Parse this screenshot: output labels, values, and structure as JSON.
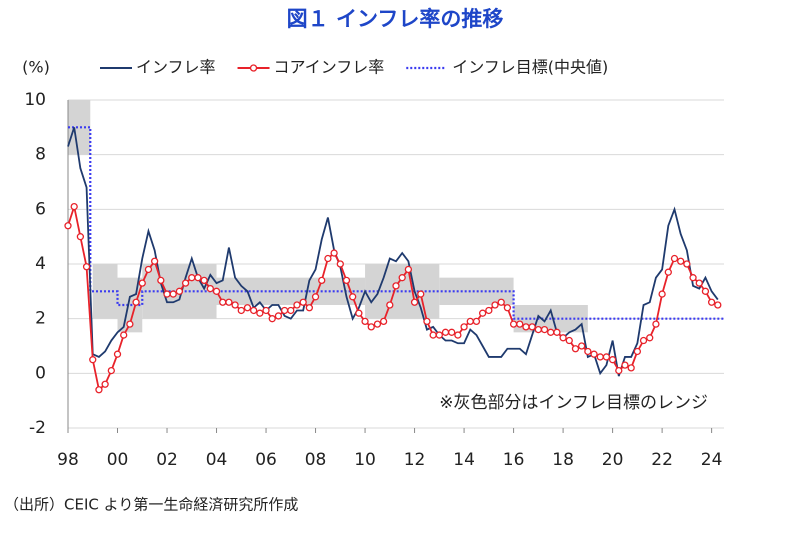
{
  "chart_data": {
    "type": "line",
    "title": "図１ インフレ率の推移",
    "y_label": "(%)",
    "annotation": "※灰色部分はインフレ目標のレンジ",
    "source": "（出所）CEIC より第一生命経済研究所作成",
    "xlim": [
      1998,
      2024.5
    ],
    "xticks": [
      {
        "value": 1998,
        "label": "98"
      },
      {
        "value": 2000,
        "label": "00"
      },
      {
        "value": 2002,
        "label": "02"
      },
      {
        "value": 2004,
        "label": "04"
      },
      {
        "value": 2006,
        "label": "06"
      },
      {
        "value": 2008,
        "label": "08"
      },
      {
        "value": 2010,
        "label": "10"
      },
      {
        "value": 2012,
        "label": "12"
      },
      {
        "value": 2014,
        "label": "14"
      },
      {
        "value": 2016,
        "label": "16"
      },
      {
        "value": 2018,
        "label": "18"
      },
      {
        "value": 2020,
        "label": "20"
      },
      {
        "value": 2022,
        "label": "22"
      },
      {
        "value": 2024,
        "label": "24"
      }
    ],
    "ylim": [
      -2,
      10
    ],
    "yticks": [
      -2,
      0,
      2,
      4,
      6,
      8,
      10
    ],
    "grid": true,
    "x": [
      1998,
      1998.25,
      1998.5,
      1998.75,
      1999,
      1999.25,
      1999.5,
      1999.75,
      2000,
      2000.25,
      2000.5,
      2000.75,
      2001,
      2001.25,
      2001.5,
      2001.75,
      2002,
      2002.25,
      2002.5,
      2002.75,
      2003,
      2003.25,
      2003.5,
      2003.75,
      2004,
      2004.25,
      2004.5,
      2004.75,
      2005,
      2005.25,
      2005.5,
      2005.75,
      2006,
      2006.25,
      2006.5,
      2006.75,
      2007,
      2007.25,
      2007.5,
      2007.75,
      2008,
      2008.25,
      2008.5,
      2008.75,
      2009,
      2009.25,
      2009.5,
      2009.75,
      2010,
      2010.25,
      2010.5,
      2010.75,
      2011,
      2011.25,
      2011.5,
      2011.75,
      2012,
      2012.25,
      2012.5,
      2012.75,
      2013,
      2013.25,
      2013.5,
      2013.75,
      2014,
      2014.25,
      2014.5,
      2014.75,
      2015,
      2015.25,
      2015.5,
      2015.75,
      2016,
      2016.25,
      2016.5,
      2016.75,
      2017,
      2017.25,
      2017.5,
      2017.75,
      2018,
      2018.25,
      2018.5,
      2018.75,
      2019,
      2019.25,
      2019.5,
      2019.75,
      2020,
      2020.25,
      2020.5,
      2020.75,
      2021,
      2021.25,
      2021.5,
      2021.75,
      2022,
      2022.25,
      2022.5,
      2022.75,
      2023,
      2023.25,
      2023.5,
      2023.75,
      2024,
      2024.25
    ],
    "series": [
      {
        "name": "インフレ率",
        "color": "#1f3a6e",
        "marker": false,
        "values": [
          8.3,
          9.0,
          7.5,
          6.8,
          0.7,
          0.6,
          0.8,
          1.2,
          1.5,
          1.7,
          2.8,
          2.9,
          4.2,
          5.2,
          4.5,
          3.3,
          2.6,
          2.6,
          2.7,
          3.5,
          4.2,
          3.5,
          3.1,
          3.6,
          3.3,
          3.4,
          4.6,
          3.5,
          3.2,
          3.0,
          2.4,
          2.6,
          2.3,
          2.5,
          2.5,
          2.1,
          2.0,
          2.3,
          2.3,
          3.4,
          3.8,
          4.9,
          5.7,
          4.5,
          3.9,
          2.8,
          2.0,
          2.4,
          3.0,
          2.6,
          2.9,
          3.5,
          4.2,
          4.1,
          4.4,
          4.1,
          3.0,
          2.4,
          1.6,
          1.7,
          1.4,
          1.2,
          1.2,
          1.1,
          1.1,
          1.6,
          1.4,
          1.0,
          0.6,
          0.6,
          0.6,
          0.9,
          0.9,
          0.9,
          0.7,
          1.4,
          2.1,
          1.9,
          2.3,
          1.5,
          1.3,
          1.5,
          1.6,
          1.8,
          0.6,
          0.7,
          0.0,
          0.3,
          1.2,
          -0.1,
          0.6,
          0.6,
          1.1,
          2.5,
          2.6,
          3.5,
          3.8,
          5.4,
          6.0,
          5.1,
          4.5,
          3.2,
          3.1,
          3.5,
          3.0,
          2.7
        ]
      },
      {
        "name": "コアインフレ率",
        "color": "#e8222a",
        "marker": true,
        "values": [
          5.4,
          6.1,
          5.0,
          3.9,
          0.5,
          -0.6,
          -0.4,
          0.1,
          0.7,
          1.4,
          1.8,
          2.6,
          3.3,
          3.8,
          4.1,
          3.4,
          2.9,
          2.9,
          3.0,
          3.3,
          3.5,
          3.5,
          3.4,
          3.1,
          3.0,
          2.6,
          2.6,
          2.5,
          2.3,
          2.4,
          2.3,
          2.2,
          2.3,
          2.0,
          2.1,
          2.3,
          2.3,
          2.5,
          2.6,
          2.4,
          2.8,
          3.4,
          4.2,
          4.4,
          4.0,
          3.4,
          2.8,
          2.2,
          1.9,
          1.7,
          1.8,
          1.9,
          2.5,
          3.2,
          3.5,
          3.8,
          2.6,
          2.9,
          1.9,
          1.4,
          1.4,
          1.5,
          1.5,
          1.4,
          1.7,
          1.9,
          1.9,
          2.2,
          2.3,
          2.5,
          2.6,
          2.4,
          1.8,
          1.8,
          1.7,
          1.7,
          1.6,
          1.6,
          1.5,
          1.5,
          1.3,
          1.2,
          0.9,
          1.0,
          0.8,
          0.7,
          0.6,
          0.6,
          0.5,
          0.1,
          0.3,
          0.2,
          0.8,
          1.2,
          1.3,
          1.8,
          2.9,
          3.7,
          4.2,
          4.1,
          4.0,
          3.5,
          3.3,
          3.0,
          2.6,
          2.5
        ]
      }
    ],
    "target": {
      "name": "インフレ目標(中央値)",
      "color": "#3b3bf0",
      "x": [
        1998,
        1998.9,
        1998.9,
        2000,
        2000,
        2001,
        2001,
        2016,
        2016,
        2024.5
      ],
      "values": [
        9,
        9,
        3,
        3,
        2.5,
        2.5,
        3,
        3,
        2,
        2
      ]
    },
    "target_bands": [
      {
        "start": 1998,
        "end": 1998.9,
        "low": 8,
        "high": 10
      },
      {
        "start": 1999,
        "end": 2000,
        "low": 2,
        "high": 4
      },
      {
        "start": 2000,
        "end": 2001,
        "low": 1.5,
        "high": 3.5
      },
      {
        "start": 2001,
        "end": 2004,
        "low": 2,
        "high": 4
      },
      {
        "start": 2004,
        "end": 2010,
        "low": 2.5,
        "high": 3.5
      },
      {
        "start": 2010,
        "end": 2013,
        "low": 2,
        "high": 4
      },
      {
        "start": 2013,
        "end": 2016,
        "low": 2.5,
        "high": 3.5
      },
      {
        "start": 2016,
        "end": 2019,
        "low": 1.5,
        "high": 2.5
      }
    ]
  }
}
